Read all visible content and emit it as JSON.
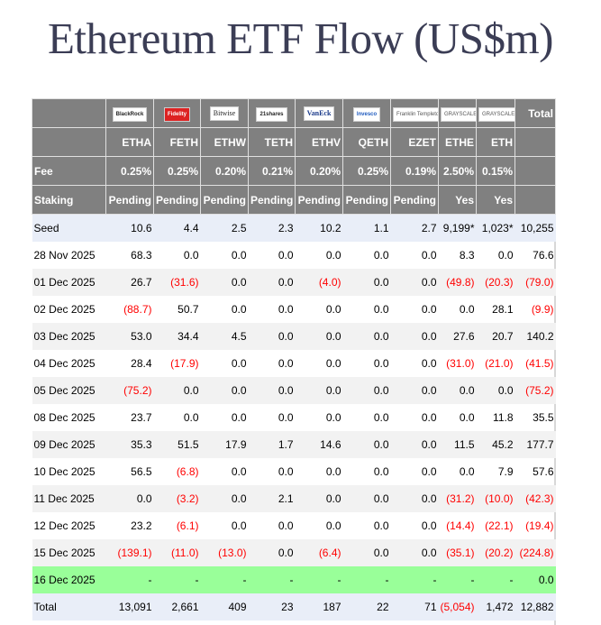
{
  "title": "Ethereum ETF Flow (US$m)",
  "colors": {
    "header_bg": "#808080",
    "negative": "#ff0000",
    "latest_row": "#99ff99",
    "seed_total_bg": "#e9eef8"
  },
  "issuers": [
    "BlackRock",
    "Fidelity",
    "Bitwise",
    "21shares",
    "VanEck",
    "Invesco",
    "Franklin Templeton",
    "GRAYSCALE",
    "GRAYSCALE"
  ],
  "total_label": "Total",
  "tickers": [
    "ETHA",
    "FETH",
    "ETHW",
    "TETH",
    "ETHV",
    "QETH",
    "EZET",
    "ETHE",
    "ETH"
  ],
  "fee": {
    "label": "Fee",
    "values": [
      "0.25%",
      "0.25%",
      "0.20%",
      "0.21%",
      "0.20%",
      "0.25%",
      "0.19%",
      "2.50%",
      "0.15%"
    ]
  },
  "staking": {
    "label": "Staking",
    "values": [
      "Pending",
      "Pending",
      "Pending",
      "Pending",
      "Pending",
      "Pending",
      "Pending",
      "Yes",
      "Yes"
    ]
  },
  "rows": [
    {
      "label": "Seed",
      "values": [
        "10.6",
        "4.4",
        "2.5",
        "2.3",
        "10.2",
        "1.1",
        "2.7",
        "9,199*",
        "1,023*",
        "10,255"
      ]
    },
    {
      "label": "28 Nov 2025",
      "values": [
        "68.3",
        "0.0",
        "0.0",
        "0.0",
        "0.0",
        "0.0",
        "0.0",
        "8.3",
        "0.0",
        "76.6"
      ]
    },
    {
      "label": "01 Dec 2025",
      "values": [
        "26.7",
        "(31.6)",
        "0.0",
        "0.0",
        "(4.0)",
        "0.0",
        "0.0",
        "(49.8)",
        "(20.3)",
        "(79.0)"
      ]
    },
    {
      "label": "02 Dec 2025",
      "values": [
        "(88.7)",
        "50.7",
        "0.0",
        "0.0",
        "0.0",
        "0.0",
        "0.0",
        "0.0",
        "28.1",
        "(9.9)"
      ]
    },
    {
      "label": "03 Dec 2025",
      "values": [
        "53.0",
        "34.4",
        "4.5",
        "0.0",
        "0.0",
        "0.0",
        "0.0",
        "27.6",
        "20.7",
        "140.2"
      ]
    },
    {
      "label": "04 Dec 2025",
      "values": [
        "28.4",
        "(17.9)",
        "0.0",
        "0.0",
        "0.0",
        "0.0",
        "0.0",
        "(31.0)",
        "(21.0)",
        "(41.5)"
      ]
    },
    {
      "label": "05 Dec 2025",
      "values": [
        "(75.2)",
        "0.0",
        "0.0",
        "0.0",
        "0.0",
        "0.0",
        "0.0",
        "0.0",
        "0.0",
        "(75.2)"
      ]
    },
    {
      "label": "08 Dec 2025",
      "values": [
        "23.7",
        "0.0",
        "0.0",
        "0.0",
        "0.0",
        "0.0",
        "0.0",
        "0.0",
        "11.8",
        "35.5"
      ]
    },
    {
      "label": "09 Dec 2025",
      "values": [
        "35.3",
        "51.5",
        "17.9",
        "1.7",
        "14.6",
        "0.0",
        "0.0",
        "11.5",
        "45.2",
        "177.7"
      ]
    },
    {
      "label": "10 Dec 2025",
      "values": [
        "56.5",
        "(6.8)",
        "0.0",
        "0.0",
        "0.0",
        "0.0",
        "0.0",
        "0.0",
        "7.9",
        "57.6"
      ]
    },
    {
      "label": "11 Dec 2025",
      "values": [
        "0.0",
        "(3.2)",
        "0.0",
        "2.1",
        "0.0",
        "0.0",
        "0.0",
        "(31.2)",
        "(10.0)",
        "(42.3)"
      ]
    },
    {
      "label": "12 Dec 2025",
      "values": [
        "23.2",
        "(6.1)",
        "0.0",
        "0.0",
        "0.0",
        "0.0",
        "0.0",
        "(14.4)",
        "(22.1)",
        "(19.4)"
      ]
    },
    {
      "label": "15 Dec 2025",
      "values": [
        "(139.1)",
        "(11.0)",
        "(13.0)",
        "0.0",
        "(6.4)",
        "0.0",
        "0.0",
        "(35.1)",
        "(20.2)",
        "(224.8)"
      ]
    },
    {
      "label": "16 Dec 2025",
      "values": [
        "-",
        "-",
        "-",
        "-",
        "-",
        "-",
        "-",
        "-",
        "-",
        "0.0"
      ]
    },
    {
      "label": "Total",
      "values": [
        "13,091",
        "2,661",
        "409",
        "23",
        "187",
        "22",
        "71",
        "(5,054)",
        "1,472",
        "12,882"
      ]
    }
  ]
}
